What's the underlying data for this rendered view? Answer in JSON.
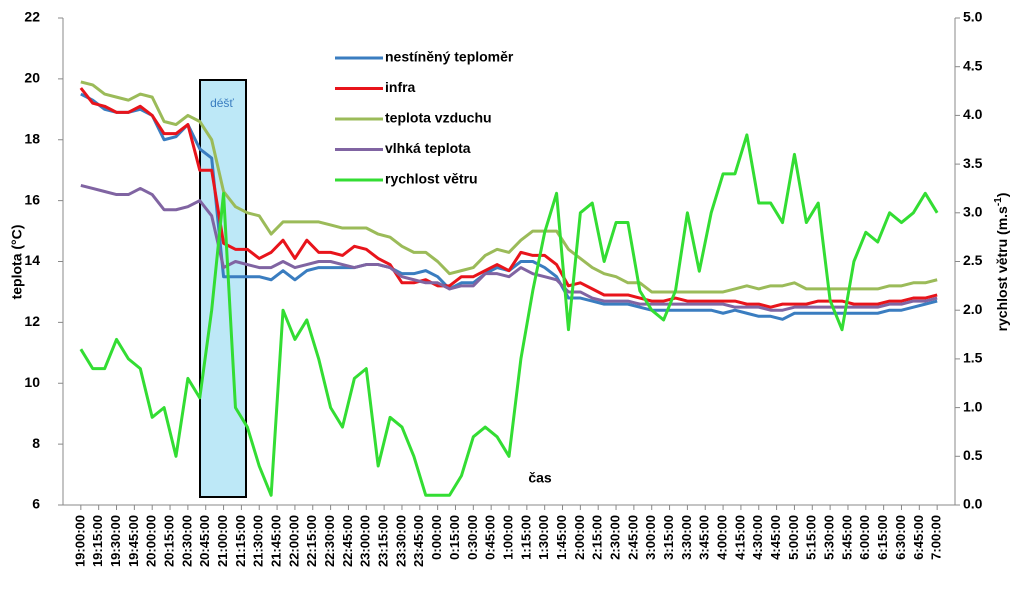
{
  "chart_data": {
    "type": "line",
    "xlabel": "čas",
    "ylabel": "teplota (°C)",
    "y2label": [
      "rychlost větru (m.s",
      "-1",
      ")"
    ],
    "annotation": "déšť",
    "x": [
      1140,
      1150,
      1160,
      1170,
      1180,
      1190,
      1200,
      1210,
      1220,
      1230,
      1240,
      1250,
      1260,
      1270,
      1280,
      1290,
      1300,
      1310,
      1320,
      1330,
      1340,
      1350,
      1360,
      1370,
      1380,
      1390,
      1400,
      1410,
      1420,
      1430,
      1440,
      1450,
      1460,
      1470,
      1480,
      1490,
      1500,
      1510,
      1520,
      1530,
      1540,
      1550,
      1560,
      1570,
      1580,
      1590,
      1600,
      1610,
      1620,
      1630,
      1640,
      1650,
      1660,
      1670,
      1680,
      1690,
      1700,
      1710,
      1720,
      1730,
      1740,
      1750,
      1760,
      1770,
      1780,
      1790,
      1800,
      1810,
      1820,
      1830,
      1840,
      1850,
      1860
    ],
    "xlim": [
      1125,
      1875
    ],
    "xticks": [
      {
        "value": 1140,
        "label": "19:00:00"
      },
      {
        "value": 1155,
        "label": "19:15:00"
      },
      {
        "value": 1170,
        "label": "19:30:00"
      },
      {
        "value": 1185,
        "label": "19:45:00"
      },
      {
        "value": 1200,
        "label": "20:00:00"
      },
      {
        "value": 1215,
        "label": "20:15:00"
      },
      {
        "value": 1230,
        "label": "20:30:00"
      },
      {
        "value": 1245,
        "label": "20:45:00"
      },
      {
        "value": 1260,
        "label": "21:00:00"
      },
      {
        "value": 1275,
        "label": "21:15:00"
      },
      {
        "value": 1290,
        "label": "21:30:00"
      },
      {
        "value": 1305,
        "label": "21:45:00"
      },
      {
        "value": 1320,
        "label": "22:00:00"
      },
      {
        "value": 1335,
        "label": "22:15:00"
      },
      {
        "value": 1350,
        "label": "22:30:00"
      },
      {
        "value": 1365,
        "label": "22:45:00"
      },
      {
        "value": 1380,
        "label": "23:00:00"
      },
      {
        "value": 1395,
        "label": "23:15:00"
      },
      {
        "value": 1410,
        "label": "23:30:00"
      },
      {
        "value": 1425,
        "label": "23:45:00"
      },
      {
        "value": 1440,
        "label": "0:00:00"
      },
      {
        "value": 1455,
        "label": "0:15:00"
      },
      {
        "value": 1470,
        "label": "0:30:00"
      },
      {
        "value": 1485,
        "label": "0:45:00"
      },
      {
        "value": 1500,
        "label": "1:00:00"
      },
      {
        "value": 1515,
        "label": "1:15:00"
      },
      {
        "value": 1530,
        "label": "1:30:00"
      },
      {
        "value": 1545,
        "label": "1:45:00"
      },
      {
        "value": 1560,
        "label": "2:00:00"
      },
      {
        "value": 1575,
        "label": "2:15:00"
      },
      {
        "value": 1590,
        "label": "2:30:00"
      },
      {
        "value": 1605,
        "label": "2:45:00"
      },
      {
        "value": 1620,
        "label": "3:00:00"
      },
      {
        "value": 1635,
        "label": "3:15:00"
      },
      {
        "value": 1650,
        "label": "3:30:00"
      },
      {
        "value": 1665,
        "label": "3:45:00"
      },
      {
        "value": 1680,
        "label": "4:00:00"
      },
      {
        "value": 1695,
        "label": "4:15:00"
      },
      {
        "value": 1710,
        "label": "4:30:00"
      },
      {
        "value": 1725,
        "label": "4:45:00"
      },
      {
        "value": 1740,
        "label": "5:00:00"
      },
      {
        "value": 1755,
        "label": "5:15:00"
      },
      {
        "value": 1770,
        "label": "5:30:00"
      },
      {
        "value": 1785,
        "label": "5:45:00"
      },
      {
        "value": 1800,
        "label": "6:00:00"
      },
      {
        "value": 1815,
        "label": "6:15:00"
      },
      {
        "value": 1830,
        "label": "6:30:00"
      },
      {
        "value": 1845,
        "label": "6:45:00"
      },
      {
        "value": 1860,
        "label": "7:00:00"
      }
    ],
    "ylim": [
      6,
      22
    ],
    "yticks": [
      6,
      8,
      10,
      12,
      14,
      16,
      18,
      20,
      22
    ],
    "y2lim": [
      0,
      5
    ],
    "y2ticks": [
      {
        "value": 0,
        "label": "0.0"
      },
      {
        "value": 0.5,
        "label": "0.5"
      },
      {
        "value": 1,
        "label": "1.0"
      },
      {
        "value": 1.5,
        "label": "1.5"
      },
      {
        "value": 2,
        "label": "2.0"
      },
      {
        "value": 2.5,
        "label": "2.5"
      },
      {
        "value": 3,
        "label": "3.0"
      },
      {
        "value": 3.5,
        "label": "3.5"
      },
      {
        "value": 4,
        "label": "4.0"
      },
      {
        "value": 4.5,
        "label": "4.5"
      },
      {
        "value": 5,
        "label": "5.0"
      }
    ],
    "series": [
      {
        "name": "nestíněný teploměr",
        "color": "#3a7dc0",
        "values": [
          19.5,
          19.3,
          19.0,
          18.9,
          18.9,
          19.0,
          18.8,
          18.0,
          18.1,
          18.5,
          17.7,
          17.4,
          13.5,
          13.5,
          13.5,
          13.5,
          13.4,
          13.7,
          13.4,
          13.7,
          13.8,
          13.8,
          13.8,
          13.8,
          13.9,
          13.9,
          13.8,
          13.6,
          13.6,
          13.7,
          13.5,
          13.1,
          13.3,
          13.3,
          13.6,
          13.8,
          13.7,
          14.0,
          14.0,
          13.8,
          13.5,
          12.8,
          12.8,
          12.7,
          12.6,
          12.6,
          12.6,
          12.5,
          12.4,
          12.4,
          12.4,
          12.4,
          12.4,
          12.4,
          12.3,
          12.4,
          12.3,
          12.2,
          12.2,
          12.1,
          12.3,
          12.3,
          12.3,
          12.3,
          12.3,
          12.3,
          12.3,
          12.3,
          12.4,
          12.4,
          12.5,
          12.6,
          12.7
        ]
      },
      {
        "name": "infra",
        "color": "#e8141b",
        "values": [
          19.7,
          19.2,
          19.1,
          18.9,
          18.9,
          19.1,
          18.8,
          18.2,
          18.2,
          18.5,
          17.0,
          17.0,
          14.6,
          14.4,
          14.4,
          14.1,
          14.3,
          14.7,
          14.1,
          14.7,
          14.3,
          14.3,
          14.2,
          14.5,
          14.4,
          14.1,
          13.9,
          13.3,
          13.3,
          13.4,
          13.2,
          13.2,
          13.5,
          13.5,
          13.7,
          13.9,
          13.7,
          14.3,
          14.2,
          14.2,
          13.9,
          13.2,
          13.3,
          13.1,
          12.9,
          12.9,
          12.9,
          12.8,
          12.7,
          12.7,
          12.8,
          12.7,
          12.7,
          12.7,
          12.7,
          12.7,
          12.6,
          12.6,
          12.5,
          12.6,
          12.6,
          12.6,
          12.7,
          12.7,
          12.7,
          12.6,
          12.6,
          12.6,
          12.7,
          12.7,
          12.8,
          12.8,
          12.9
        ]
      },
      {
        "name": "teplota vzduchu",
        "color": "#9bbb59",
        "values": [
          19.9,
          19.8,
          19.5,
          19.4,
          19.3,
          19.5,
          19.4,
          18.6,
          18.5,
          18.8,
          18.6,
          18.0,
          16.3,
          15.8,
          15.6,
          15.5,
          14.9,
          15.3,
          15.3,
          15.3,
          15.3,
          15.2,
          15.1,
          15.1,
          15.1,
          14.9,
          14.8,
          14.5,
          14.3,
          14.3,
          14.0,
          13.6,
          13.7,
          13.8,
          14.2,
          14.4,
          14.3,
          14.7,
          15.0,
          15.0,
          15.0,
          14.4,
          14.1,
          13.8,
          13.6,
          13.5,
          13.3,
          13.3,
          13.0,
          13.0,
          13.0,
          13.0,
          13.0,
          13.0,
          13.0,
          13.1,
          13.2,
          13.1,
          13.2,
          13.2,
          13.3,
          13.1,
          13.1,
          13.1,
          13.1,
          13.1,
          13.1,
          13.1,
          13.2,
          13.2,
          13.3,
          13.3,
          13.4
        ]
      },
      {
        "name": "vlhká teplota",
        "color": "#8064a2",
        "values": [
          16.5,
          16.4,
          16.3,
          16.2,
          16.2,
          16.4,
          16.2,
          15.7,
          15.7,
          15.8,
          16.0,
          15.5,
          13.8,
          14.0,
          13.9,
          13.8,
          13.8,
          14.0,
          13.8,
          13.9,
          14.0,
          14.0,
          13.9,
          13.8,
          13.9,
          13.9,
          13.8,
          13.5,
          13.4,
          13.3,
          13.3,
          13.1,
          13.2,
          13.2,
          13.6,
          13.6,
          13.5,
          13.8,
          13.6,
          13.5,
          13.4,
          13.0,
          13.0,
          12.8,
          12.7,
          12.7,
          12.7,
          12.6,
          12.6,
          12.6,
          12.6,
          12.6,
          12.6,
          12.6,
          12.6,
          12.5,
          12.5,
          12.5,
          12.4,
          12.4,
          12.5,
          12.5,
          12.5,
          12.5,
          12.5,
          12.5,
          12.5,
          12.5,
          12.6,
          12.6,
          12.7,
          12.7,
          12.8
        ]
      },
      {
        "name": "rychlost větru",
        "color": "#33dd33",
        "axis": "y2",
        "values": [
          1.6,
          1.4,
          1.4,
          1.7,
          1.5,
          1.4,
          0.9,
          1.0,
          0.5,
          1.3,
          1.1,
          2.0,
          3.2,
          1.0,
          0.8,
          0.4,
          0.1,
          2.0,
          1.7,
          1.9,
          1.5,
          1.0,
          0.8,
          1.3,
          1.4,
          0.4,
          0.9,
          0.8,
          0.5,
          0.1,
          0.1,
          0.1,
          0.3,
          0.7,
          0.8,
          0.7,
          0.5,
          1.5,
          2.2,
          2.8,
          3.2,
          1.8,
          3.0,
          3.1,
          2.5,
          2.9,
          2.9,
          2.2,
          2.0,
          1.9,
          2.2,
          3.0,
          2.4,
          3.0,
          3.4,
          3.4,
          3.8,
          3.1,
          3.1,
          2.9,
          3.6,
          2.9,
          3.1,
          2.1,
          1.8,
          2.5,
          2.8,
          2.7,
          3.0,
          2.9,
          3.0,
          3.2,
          3.0
        ]
      }
    ]
  }
}
